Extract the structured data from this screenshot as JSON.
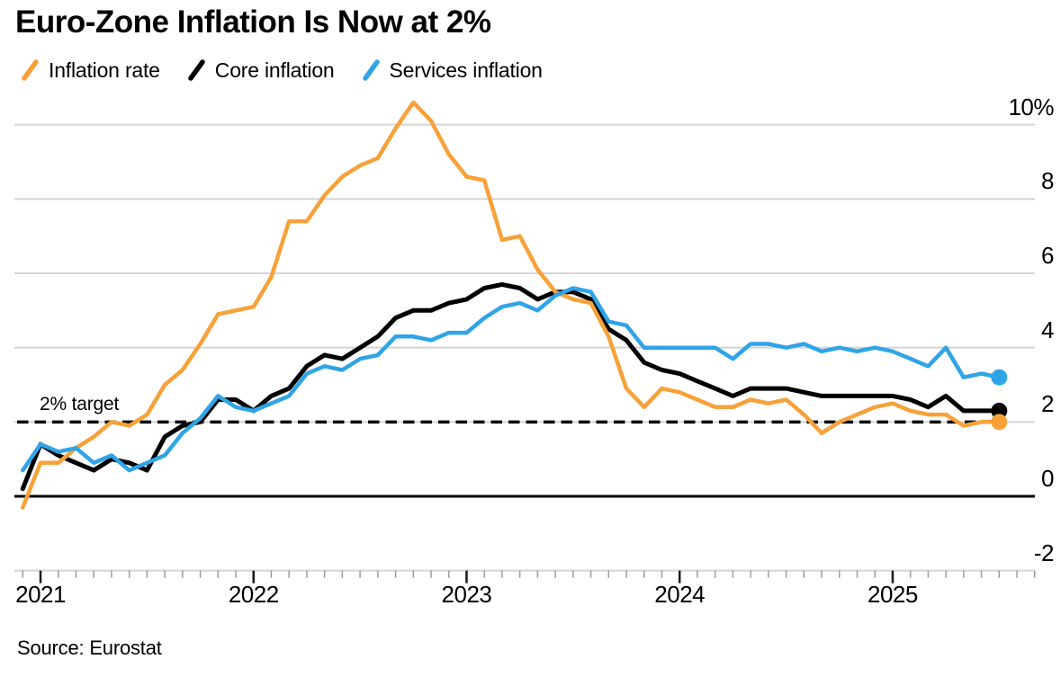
{
  "title": "Euro-Zone Inflation Is Now at 2%",
  "source": "Source: Eurostat",
  "annotations": {
    "target_label": "2% target"
  },
  "legend": [
    {
      "label": "Inflation rate",
      "color": "#F7A139"
    },
    {
      "label": "Core inflation",
      "color": "#000000"
    },
    {
      "label": "Services inflation",
      "color": "#2FA4E7"
    }
  ],
  "palette": {
    "gridline": "#D4D4D4",
    "zero_line": "#000000",
    "minor_tick": "#9B9B9B",
    "major_tick": "#1A1A1A",
    "target_line": "#000000",
    "background": "#FFFFFF"
  },
  "chart_data": {
    "type": "line",
    "frequency": "monthly",
    "x_start_month": "2020-12",
    "x_end_month": "2025-07",
    "ylim": [
      -2,
      10
    ],
    "grid": true,
    "legend_position": "top",
    "target": {
      "value": 2,
      "label": "2% target",
      "style": "dashed"
    },
    "y_ticks": [
      {
        "label": "10%",
        "value": 10
      },
      {
        "label": "8",
        "value": 8
      },
      {
        "label": "6",
        "value": 6
      },
      {
        "label": "4",
        "value": 4
      },
      {
        "label": "2",
        "value": 2
      },
      {
        "label": "0",
        "value": 0
      },
      {
        "label": "-2",
        "value": -2
      }
    ],
    "x_ticks": [
      {
        "label": "2021",
        "month_index": 1
      },
      {
        "label": "2022",
        "month_index": 13
      },
      {
        "label": "2023",
        "month_index": 25
      },
      {
        "label": "2024",
        "month_index": 37
      },
      {
        "label": "2025",
        "month_index": 49
      }
    ],
    "x_total_months": 58,
    "series": [
      {
        "name": "Inflation rate",
        "color": "#F7A139",
        "values": [
          -0.3,
          0.9,
          0.9,
          1.3,
          1.6,
          2.0,
          1.9,
          2.2,
          3.0,
          3.4,
          4.1,
          4.9,
          5.0,
          5.1,
          5.9,
          7.4,
          7.4,
          8.1,
          8.6,
          8.9,
          9.1,
          9.9,
          10.6,
          10.1,
          9.2,
          8.6,
          8.5,
          6.9,
          7.0,
          6.1,
          5.5,
          5.3,
          5.2,
          4.3,
          2.9,
          2.4,
          2.9,
          2.8,
          2.6,
          2.4,
          2.4,
          2.6,
          2.5,
          2.6,
          2.2,
          1.7,
          2.0,
          2.2,
          2.4,
          2.5,
          2.3,
          2.2,
          2.2,
          1.9,
          2.0,
          2.0
        ]
      },
      {
        "name": "Core inflation",
        "color": "#000000",
        "values": [
          0.2,
          1.4,
          1.1,
          0.9,
          0.7,
          1.0,
          0.9,
          0.7,
          1.6,
          1.9,
          2.0,
          2.6,
          2.6,
          2.3,
          2.7,
          2.9,
          3.5,
          3.8,
          3.7,
          4.0,
          4.3,
          4.8,
          5.0,
          5.0,
          5.2,
          5.3,
          5.6,
          5.7,
          5.6,
          5.3,
          5.5,
          5.5,
          5.3,
          4.5,
          4.2,
          3.6,
          3.4,
          3.3,
          3.1,
          2.9,
          2.7,
          2.9,
          2.9,
          2.9,
          2.8,
          2.7,
          2.7,
          2.7,
          2.7,
          2.7,
          2.6,
          2.4,
          2.7,
          2.3,
          2.3,
          2.3
        ]
      },
      {
        "name": "Services inflation",
        "color": "#2FA4E7",
        "values": [
          0.7,
          1.4,
          1.2,
          1.3,
          0.9,
          1.1,
          0.7,
          0.9,
          1.1,
          1.7,
          2.1,
          2.7,
          2.4,
          2.3,
          2.5,
          2.7,
          3.3,
          3.5,
          3.4,
          3.7,
          3.8,
          4.3,
          4.3,
          4.2,
          4.4,
          4.4,
          4.8,
          5.1,
          5.2,
          5.0,
          5.4,
          5.6,
          5.5,
          4.7,
          4.6,
          4.0,
          4.0,
          4.0,
          4.0,
          4.0,
          3.7,
          4.1,
          4.1,
          4.0,
          4.1,
          3.9,
          4.0,
          3.9,
          4.0,
          3.9,
          3.7,
          3.5,
          4.0,
          3.2,
          3.3,
          3.2
        ]
      }
    ]
  }
}
